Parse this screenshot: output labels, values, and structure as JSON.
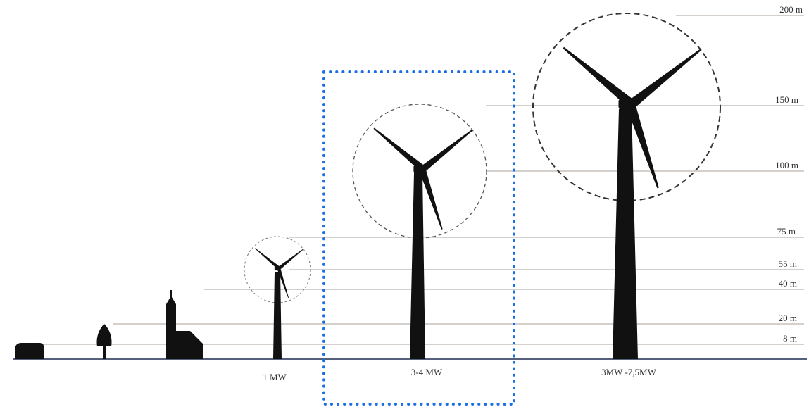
{
  "height_labels": [
    "200 m",
    "150 m",
    "100 m",
    "75 m",
    "55 m",
    "40 m",
    "20 m",
    "8 m"
  ],
  "turbine_labels": [
    "1 MW",
    "3-4 MW",
    "3MW -7,5MW"
  ]
}
